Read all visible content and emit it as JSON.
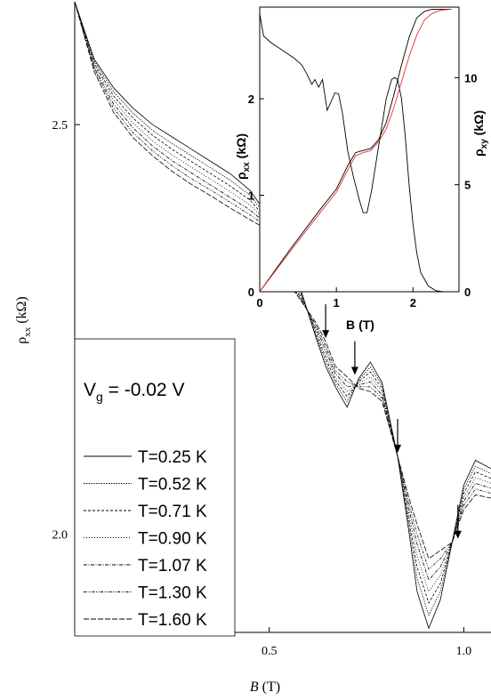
{
  "chart_data": [
    {
      "id": "main",
      "type": "line",
      "xlabel": "B",
      "xlabel_unit": "(T)",
      "ylabel": "ρ",
      "ylabel_sub": "xx",
      "ylabel_unit": "(kΩ)",
      "xlim": [
        0.0,
        1.07
      ],
      "ylim": [
        1.88,
        2.65
      ],
      "xticks": [
        0.5,
        1.0
      ],
      "xtick_labels": [
        "0.5",
        "1.0"
      ],
      "yticks": [
        2.0,
        2.5
      ],
      "ytick_labels": [
        "2.0",
        "2.5"
      ],
      "annotation": {
        "main": "V",
        "sub": "g",
        "rest": " = -0.02 V"
      },
      "legend_position": "bottom-left",
      "arrows_at_B": [
        0.645,
        0.72,
        0.83,
        0.985
      ],
      "x": [
        0.0,
        0.05,
        0.1,
        0.15,
        0.2,
        0.25,
        0.3,
        0.35,
        0.4,
        0.45,
        0.48,
        0.51,
        0.53,
        0.55,
        0.58,
        0.62,
        0.645,
        0.67,
        0.7,
        0.73,
        0.76,
        0.79,
        0.83,
        0.86,
        0.88,
        0.91,
        0.94,
        0.97,
        1.0,
        1.03,
        1.07
      ],
      "series": [
        {
          "name": "T=0.25 K",
          "dash": "",
          "values": [
            2.65,
            2.58,
            2.545,
            2.52,
            2.5,
            2.485,
            2.47,
            2.455,
            2.44,
            2.42,
            2.4,
            2.33,
            2.3,
            2.31,
            2.3,
            2.24,
            2.205,
            2.18,
            2.155,
            2.19,
            2.21,
            2.185,
            2.095,
            2.0,
            1.93,
            1.885,
            1.92,
            1.99,
            2.06,
            2.09,
            2.08
          ]
        },
        {
          "name": "T=0.52 K",
          "dash": "1.4,1.4",
          "values": [
            2.65,
            2.578,
            2.54,
            2.514,
            2.493,
            2.477,
            2.462,
            2.447,
            2.432,
            2.414,
            2.396,
            2.335,
            2.303,
            2.31,
            2.297,
            2.243,
            2.21,
            2.184,
            2.162,
            2.188,
            2.204,
            2.182,
            2.095,
            2.008,
            1.946,
            1.901,
            1.93,
            1.99,
            2.055,
            2.083,
            2.074
          ]
        },
        {
          "name": "T=0.71 K",
          "dash": "3,2",
          "values": [
            2.65,
            2.575,
            2.535,
            2.508,
            2.487,
            2.47,
            2.455,
            2.44,
            2.425,
            2.408,
            2.392,
            2.338,
            2.306,
            2.31,
            2.295,
            2.246,
            2.215,
            2.188,
            2.168,
            2.186,
            2.198,
            2.178,
            2.095,
            2.015,
            1.96,
            1.916,
            1.94,
            1.99,
            2.05,
            2.076,
            2.068
          ]
        },
        {
          "name": "T=0.90 K",
          "dash": "1,2",
          "values": [
            2.65,
            2.573,
            2.53,
            2.502,
            2.48,
            2.463,
            2.448,
            2.433,
            2.418,
            2.402,
            2.388,
            2.341,
            2.309,
            2.309,
            2.292,
            2.249,
            2.22,
            2.192,
            2.174,
            2.184,
            2.192,
            2.174,
            2.095,
            2.022,
            1.974,
            1.93,
            1.95,
            1.99,
            2.045,
            2.069,
            2.062
          ]
        },
        {
          "name": "T=1.07 K",
          "dash": "4,1.5,1,1.5",
          "values": [
            2.65,
            2.57,
            2.525,
            2.496,
            2.474,
            2.456,
            2.441,
            2.426,
            2.411,
            2.396,
            2.384,
            2.344,
            2.312,
            2.308,
            2.29,
            2.252,
            2.225,
            2.196,
            2.18,
            2.182,
            2.186,
            2.17,
            2.095,
            2.029,
            1.988,
            1.944,
            1.96,
            1.99,
            2.04,
            2.062,
            2.056
          ]
        },
        {
          "name": "T=1.30 K",
          "dash": "3,1.5,1,1.5,1,1.5",
          "values": [
            2.65,
            2.568,
            2.52,
            2.49,
            2.468,
            2.45,
            2.434,
            2.42,
            2.405,
            2.39,
            2.38,
            2.347,
            2.315,
            2.307,
            2.288,
            2.255,
            2.23,
            2.2,
            2.186,
            2.18,
            2.18,
            2.166,
            2.095,
            2.036,
            2.0,
            1.957,
            1.97,
            1.99,
            2.035,
            2.055,
            2.05
          ]
        },
        {
          "name": "T=1.60 K",
          "dash": "6,2",
          "values": [
            2.65,
            2.565,
            2.515,
            2.484,
            2.462,
            2.443,
            2.427,
            2.413,
            2.398,
            2.384,
            2.376,
            2.35,
            2.318,
            2.306,
            2.286,
            2.258,
            2.235,
            2.205,
            2.192,
            2.178,
            2.174,
            2.162,
            2.095,
            2.043,
            2.012,
            1.97,
            1.98,
            1.99,
            2.03,
            2.048,
            2.044
          ]
        }
      ]
    },
    {
      "id": "inset",
      "type": "line",
      "xlabel": "B",
      "xlabel_unit": "(T)",
      "ylabel_left": "ρ",
      "ylabel_left_sub": "xx",
      "ylabel_left_unit": "(kΩ)",
      "ylabel_right": "ρ",
      "ylabel_right_sub": "xy",
      "ylabel_right_unit": "(kΩ)",
      "xlim": [
        0,
        2.6
      ],
      "ylim_left": [
        0,
        2.95
      ],
      "ylim_right": [
        0,
        13.3
      ],
      "xticks": [
        0,
        1,
        2
      ],
      "xtick_labels": [
        "0",
        "1",
        "2"
      ],
      "yticks_left": [
        0,
        1,
        2
      ],
      "ytick_left_labels": [
        "0",
        "1",
        "2"
      ],
      "yticks_right": [
        0,
        5,
        10
      ],
      "ytick_right_labels": [
        "0",
        "5",
        "10"
      ],
      "series": [
        {
          "name": "ρxx",
          "axis": "left",
          "color": "#000000",
          "x": [
            0.0,
            0.05,
            0.15,
            0.3,
            0.45,
            0.55,
            0.62,
            0.68,
            0.72,
            0.77,
            0.82,
            0.88,
            0.92,
            0.98,
            1.03,
            1.08,
            1.15,
            1.22,
            1.3,
            1.35,
            1.4,
            1.46,
            1.55,
            1.65,
            1.72,
            1.76,
            1.8,
            1.85,
            1.9,
            1.95,
            2.0,
            2.05,
            2.1,
            2.2,
            2.3,
            2.4,
            2.5
          ],
          "values": [
            2.88,
            2.65,
            2.58,
            2.5,
            2.42,
            2.35,
            2.25,
            2.15,
            2.2,
            2.12,
            2.2,
            1.88,
            1.95,
            2.06,
            2.05,
            1.85,
            1.45,
            1.2,
            0.95,
            0.82,
            0.82,
            1.05,
            1.5,
            2.0,
            2.2,
            2.22,
            2.2,
            2.0,
            1.6,
            1.1,
            0.7,
            0.4,
            0.2,
            0.06,
            0.01,
            0.0,
            0.0
          ]
        },
        {
          "name": "ρxy",
          "axis": "right",
          "color": "#000000",
          "x": [
            0.0,
            0.4,
            0.8,
            1.0,
            1.15,
            1.25,
            1.35,
            1.45,
            1.55,
            1.65,
            1.75,
            1.85,
            1.95,
            2.05,
            2.15,
            2.25,
            2.4,
            2.5
          ],
          "values": [
            0.0,
            2.0,
            3.9,
            4.8,
            5.9,
            6.5,
            6.6,
            6.7,
            7.1,
            7.9,
            9.2,
            10.6,
            11.9,
            12.8,
            13.1,
            13.2,
            13.2,
            13.2
          ]
        },
        {
          "name": "ρxy (red)",
          "axis": "right",
          "color": "#e8302e",
          "x": [
            0.0,
            0.4,
            0.8,
            1.0,
            1.15,
            1.25,
            1.35,
            1.45,
            1.55,
            1.65,
            1.75,
            1.85,
            1.95,
            2.05,
            2.15,
            2.25,
            2.35,
            2.5
          ],
          "values": [
            0.0,
            1.9,
            3.75,
            4.65,
            5.7,
            6.35,
            6.5,
            6.6,
            7.0,
            7.6,
            8.6,
            9.8,
            11.0,
            12.0,
            12.7,
            13.0,
            13.15,
            13.2
          ]
        }
      ]
    }
  ]
}
